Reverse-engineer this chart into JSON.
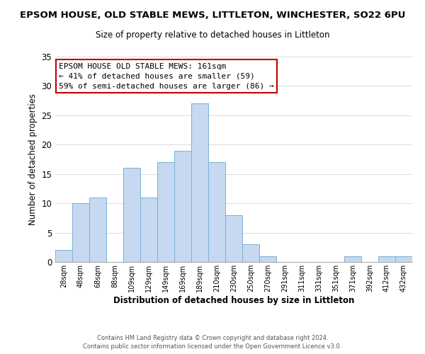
{
  "title": "EPSOM HOUSE, OLD STABLE MEWS, LITTLETON, WINCHESTER, SO22 6PU",
  "subtitle": "Size of property relative to detached houses in Littleton",
  "xlabel": "Distribution of detached houses by size in Littleton",
  "ylabel": "Number of detached properties",
  "bar_labels": [
    "28sqm",
    "48sqm",
    "68sqm",
    "88sqm",
    "109sqm",
    "129sqm",
    "149sqm",
    "169sqm",
    "189sqm",
    "210sqm",
    "230sqm",
    "250sqm",
    "270sqm",
    "291sqm",
    "311sqm",
    "331sqm",
    "351sqm",
    "371sqm",
    "392sqm",
    "412sqm",
    "432sqm"
  ],
  "bar_heights": [
    2,
    10,
    11,
    0,
    16,
    11,
    17,
    19,
    27,
    17,
    8,
    3,
    1,
    0,
    0,
    0,
    0,
    1,
    0,
    1,
    1
  ],
  "bar_color": "#c6d9f0",
  "bar_edge_color": "#7bafd4",
  "ylim": [
    0,
    35
  ],
  "yticks": [
    0,
    5,
    10,
    15,
    20,
    25,
    30,
    35
  ],
  "annotation_title": "EPSOM HOUSE OLD STABLE MEWS: 161sqm",
  "annotation_line1": "← 41% of detached houses are smaller (59)",
  "annotation_line2": "59% of semi-detached houses are larger (86) →",
  "annotation_box_color": "#ffffff",
  "annotation_box_edge": "#c00000",
  "footer_line1": "Contains HM Land Registry data © Crown copyright and database right 2024.",
  "footer_line2": "Contains public sector information licensed under the Open Government Licence v3.0.",
  "background_color": "#ffffff",
  "fig_width": 6.0,
  "fig_height": 5.0,
  "dpi": 100
}
